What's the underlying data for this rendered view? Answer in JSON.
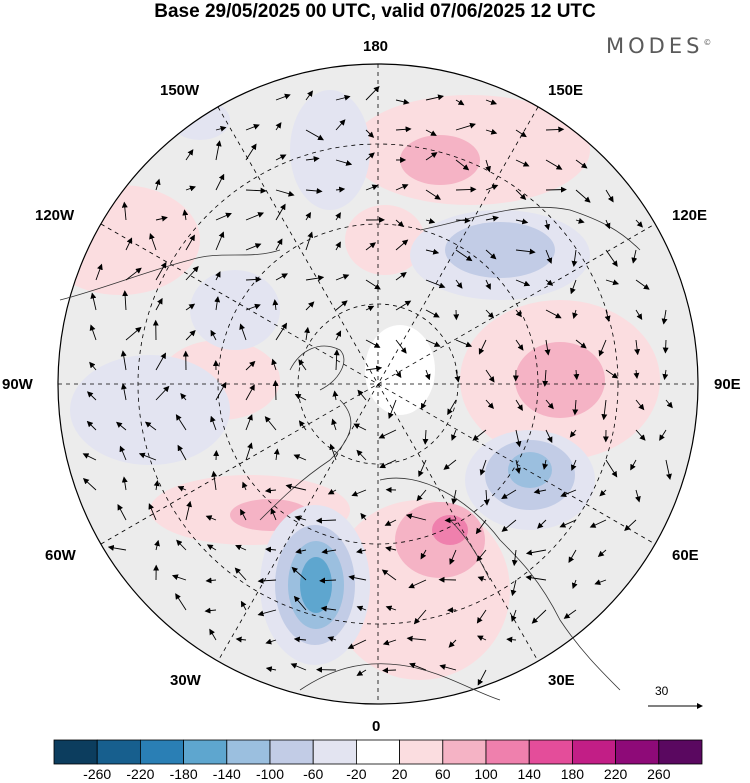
{
  "title": "Base 29/05/2025 00 UTC, valid 07/06/2025 12 UTC",
  "brand": "MODES",
  "brand_mark": "©",
  "lon_labels": {
    "top": "180",
    "bottom": "0",
    "left": "90W",
    "right": "90E",
    "upper_left_1": "150W",
    "upper_left_2": "120W",
    "upper_right_1": "150E",
    "upper_right_2": "120E",
    "lower_left_1": "60W",
    "lower_left_2": "30W",
    "lower_right_1": "60E",
    "lower_right_2": "30E"
  },
  "reference_vector": "30",
  "colorbar": {
    "labels": [
      "-260",
      "-220",
      "-180",
      "-140",
      "-100",
      "-60",
      "-20",
      "20",
      "60",
      "100",
      "140",
      "180",
      "220",
      "260"
    ],
    "colors": [
      "#0c3d5e",
      "#175f8e",
      "#2a7fb5",
      "#5ea6cf",
      "#9bbfdf",
      "#c2cce6",
      "#e3e4f1",
      "#ffffff",
      "#fbdde0",
      "#f5b3c5",
      "#ef80ad",
      "#e44d9a",
      "#c21e86",
      "#8e0a78",
      "#5a0860"
    ]
  },
  "map": {
    "projection": "north-polar-stereographic",
    "field": "height anomaly with wind vectors"
  }
}
